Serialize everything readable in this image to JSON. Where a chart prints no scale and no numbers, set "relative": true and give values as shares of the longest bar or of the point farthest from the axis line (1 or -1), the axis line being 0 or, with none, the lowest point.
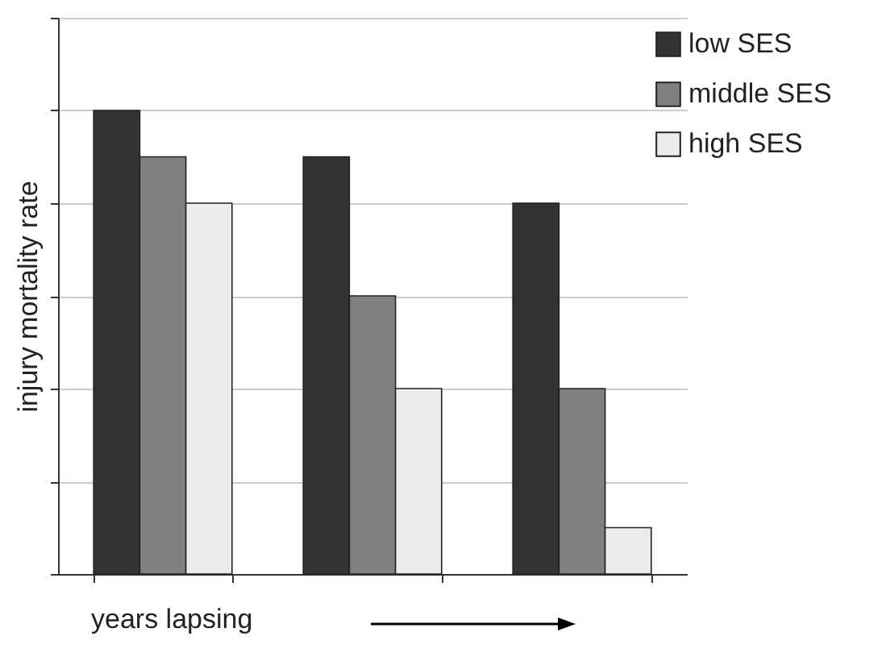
{
  "chart_data": {
    "type": "bar",
    "relative": true,
    "ylabel": "injury mortality rate",
    "xlabel": "years lapsing",
    "categories": [
      null,
      null,
      null
    ],
    "series": [
      {
        "name": "low SES",
        "color": "#333333",
        "values": [
          1,
          0.9,
          0.8
        ]
      },
      {
        "name": "middle SES",
        "color": "#808080",
        "values": [
          0.9,
          0.6,
          0.4
        ]
      },
      {
        "name": "high SES",
        "color": "#ececec",
        "values": [
          0.8,
          0.4,
          0.1
        ]
      }
    ],
    "grid": "y",
    "legend": "top right"
  }
}
